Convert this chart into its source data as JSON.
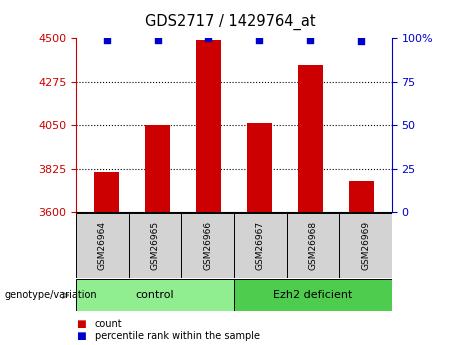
{
  "title": "GDS2717 / 1429764_at",
  "samples": [
    "GSM26964",
    "GSM26965",
    "GSM26966",
    "GSM26967",
    "GSM26968",
    "GSM26969"
  ],
  "red_values": [
    3810,
    4050,
    4490,
    4060,
    4360,
    3760
  ],
  "blue_values": [
    99,
    99,
    100,
    99,
    99,
    98
  ],
  "ylim_left": [
    3600,
    4500
  ],
  "ylim_right": [
    0,
    100
  ],
  "yticks_left": [
    3600,
    3825,
    4050,
    4275,
    4500
  ],
  "yticks_right": [
    0,
    25,
    50,
    75,
    100
  ],
  "groups": [
    {
      "label": "control",
      "indices": [
        0,
        1,
        2
      ],
      "color": "#90EE90"
    },
    {
      "label": "Ezh2 deficient",
      "indices": [
        3,
        4,
        5
      ],
      "color": "#4ECC4E"
    }
  ],
  "group_label": "genotype/variation",
  "legend_items": [
    {
      "label": "count",
      "color": "#cc0000"
    },
    {
      "label": "percentile rank within the sample",
      "color": "#0000cc"
    }
  ],
  "bar_color": "#cc0000",
  "dot_color": "#0000cc",
  "axis_color_left": "#cc0000",
  "axis_color_right": "#0000cc",
  "sample_box_color": "#d3d3d3",
  "bar_width": 0.5,
  "figsize": [
    4.61,
    3.45
  ],
  "dpi": 100,
  "gridlines_at": [
    3825,
    4050,
    4275
  ]
}
